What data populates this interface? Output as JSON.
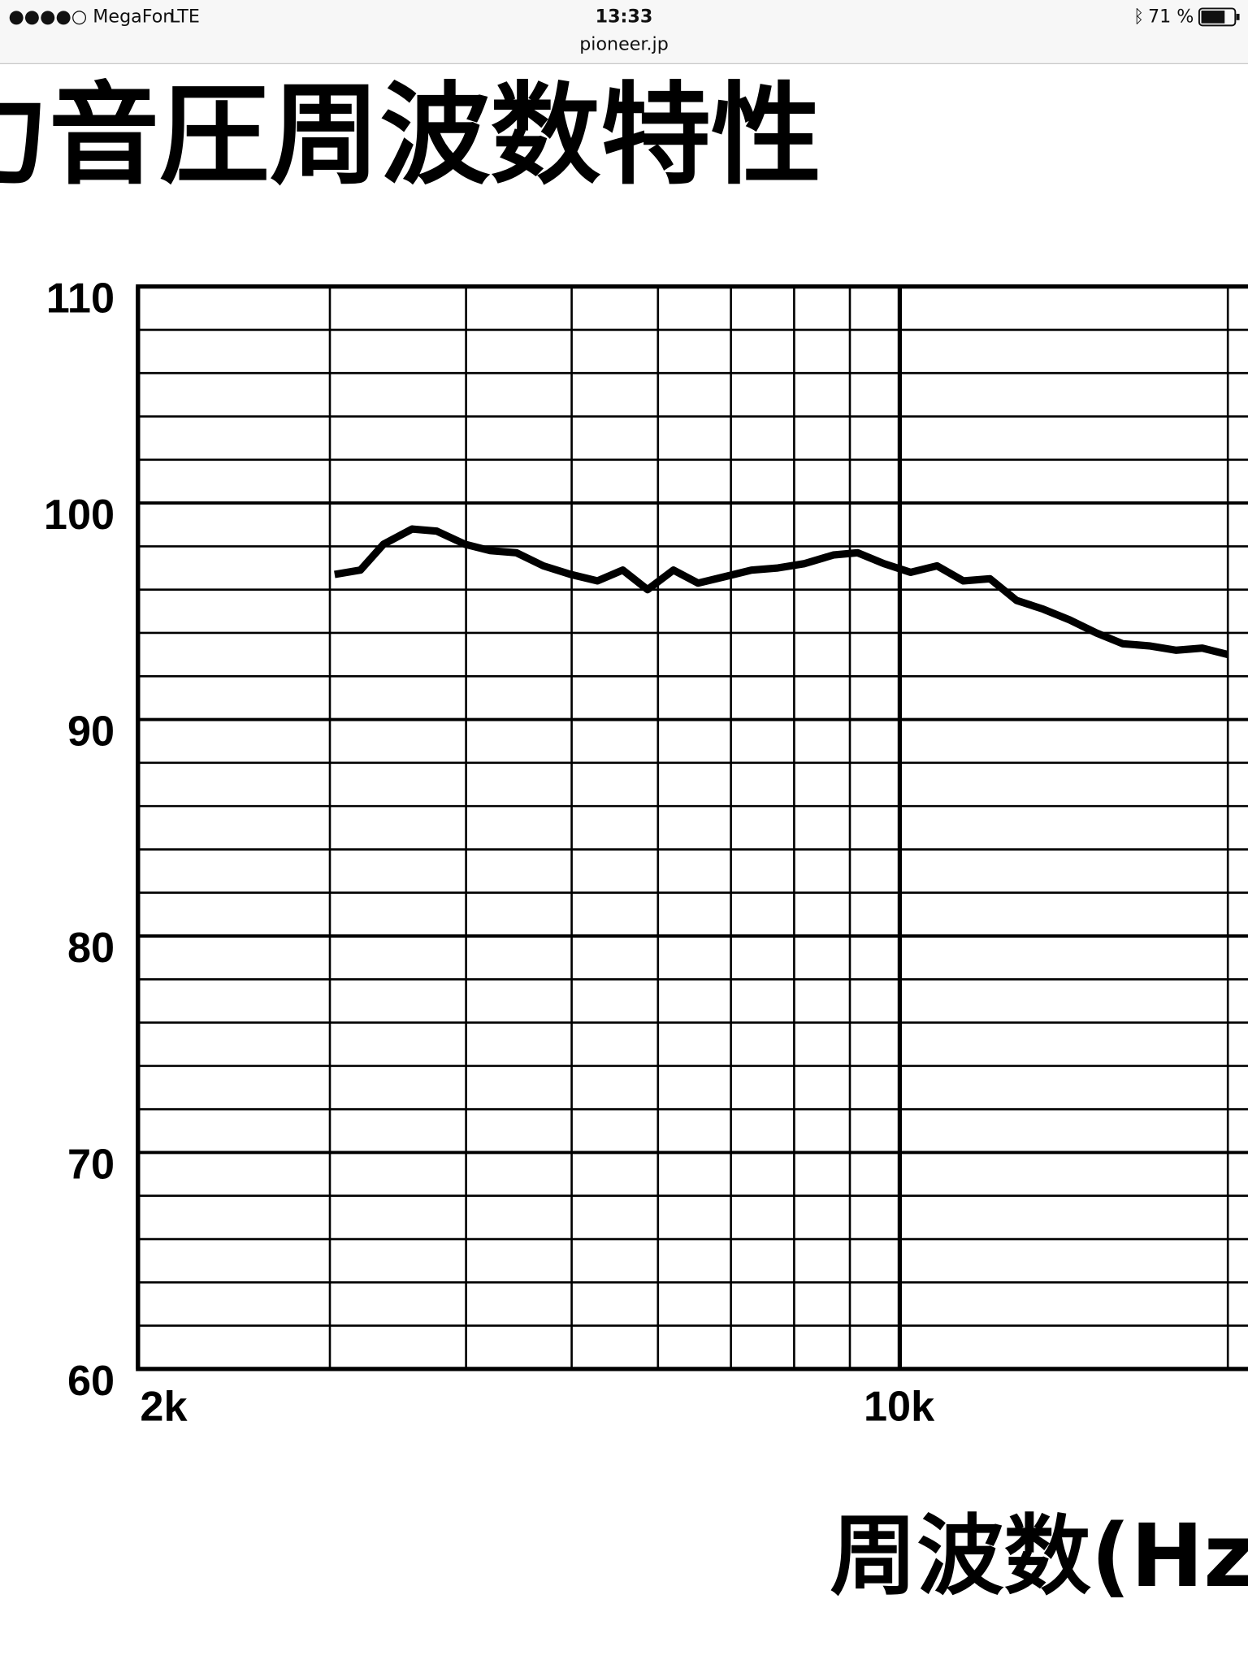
{
  "status_bar": {
    "carrier": "●●●●○ MegaFon",
    "network": "LTE",
    "time": "13:33",
    "url": "pioneer.jp",
    "battery": "71 %"
  },
  "chart_data": {
    "type": "line",
    "title": "力音圧周波数特性",
    "x_label": "周波数(Hz)",
    "x": [
      3030,
      3200,
      3360,
      3570,
      3760,
      3990,
      4210,
      4450,
      4710,
      4990,
      5280,
      5570,
      5870,
      6200,
      6530,
      6910,
      7310,
      7730,
      8180,
      8690,
      9150,
      9670,
      10230,
      10820,
      11440,
      12100,
      12800,
      13540,
      14320,
      15150,
      16020,
      16940,
      17920,
      18950,
      20000
    ],
    "series": [
      {
        "color": "#000000",
        "values": [
          96.7,
          96.9,
          98.1,
          98.8,
          98.7,
          98.1,
          97.8,
          97.7,
          97.1,
          96.7,
          96.4,
          96.9,
          96.0,
          96.9,
          96.3,
          96.6,
          96.9,
          97.0,
          97.2,
          97.6,
          97.7,
          97.2,
          96.8,
          97.1,
          96.4,
          96.5,
          95.5,
          95.1,
          94.6,
          94.0,
          93.5,
          93.4,
          93.2,
          93.3,
          93.0
        ]
      }
    ],
    "log_x": true,
    "xlim": [
      2000,
      20000
    ],
    "xticks": [
      {
        "value": 2000,
        "label": "2k"
      },
      {
        "value": 10000,
        "label": "10k"
      }
    ],
    "x_minor_grid": [
      3000,
      4000,
      5000,
      6000,
      7000,
      8000,
      9000,
      20000
    ],
    "ylim": [
      60,
      110
    ],
    "yticks": [
      60,
      70,
      80,
      90,
      100,
      110
    ],
    "y_minor_grid": [
      62,
      64,
      66,
      68,
      72,
      74,
      76,
      78,
      82,
      84,
      86,
      88,
      92,
      94,
      96,
      98,
      102,
      104,
      106,
      108
    ],
    "grid": true
  }
}
